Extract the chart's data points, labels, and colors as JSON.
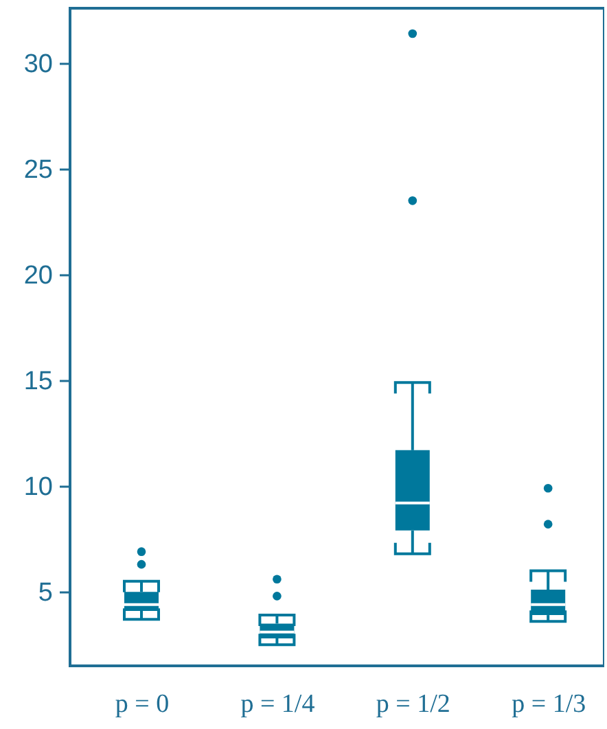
{
  "chart_data": {
    "type": "box",
    "categories": [
      "p = 0",
      "p = 1/4",
      "p = 1/2",
      "p = 1/3"
    ],
    "series": [
      {
        "color": "#00789c",
        "boxes": [
          {
            "low": 3.7,
            "q1": 4.1,
            "median": 4.4,
            "q3": 5.0,
            "high": 5.5,
            "outliers": [
              6.3,
              6.9
            ]
          },
          {
            "low": 2.5,
            "q1": 2.8,
            "median": 3.1,
            "q3": 3.5,
            "high": 3.9,
            "outliers": [
              4.8,
              5.6
            ]
          },
          {
            "low": 6.8,
            "q1": 7.9,
            "median": 9.2,
            "q3": 11.7,
            "high": 14.9,
            "outliers": [
              23.5,
              31.4
            ]
          },
          {
            "low": 3.6,
            "q1": 3.9,
            "median": 4.4,
            "q3": 5.1,
            "high": 6.0,
            "outliers": [
              8.2,
              9.9
            ]
          }
        ]
      }
    ],
    "ylim": [
      1.5,
      32.6
    ],
    "yticks": [
      5,
      10,
      15,
      20,
      25,
      30
    ]
  }
}
